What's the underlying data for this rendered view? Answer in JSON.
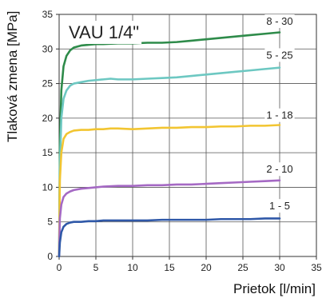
{
  "chart_data": {
    "type": "line",
    "title": "VAU 1/4\"",
    "xlabel": "Prietok [l/min]",
    "ylabel": "Tlaková zmena [MPa]",
    "xlim": [
      0,
      35
    ],
    "ylim": [
      0,
      35
    ],
    "x_ticks": [
      0,
      5,
      10,
      15,
      20,
      25,
      30,
      35
    ],
    "y_ticks": [
      0,
      5,
      10,
      15,
      20,
      25,
      30,
      35
    ],
    "grid": true,
    "series": [
      {
        "name": "8 - 30",
        "color": "#2e8b4a",
        "x": [
          0.1,
          0.3,
          0.6,
          1,
          1.5,
          2,
          3,
          4,
          5,
          6,
          8,
          10,
          12,
          14,
          16,
          18,
          20,
          22,
          24,
          26,
          28,
          30
        ],
        "y": [
          16,
          24,
          27.5,
          29,
          29.8,
          30.2,
          30.5,
          30.6,
          30.7,
          30.7,
          30.8,
          30.8,
          30.9,
          30.9,
          31.0,
          31.2,
          31.4,
          31.6,
          31.8,
          32.0,
          32.2,
          32.4
        ]
      },
      {
        "name": "5 - 25",
        "color": "#6dc8c2",
        "x": [
          0.1,
          0.3,
          0.6,
          1,
          1.5,
          2,
          3,
          4,
          5,
          6,
          7,
          8,
          10,
          12,
          14,
          16,
          18,
          20,
          22,
          24,
          26,
          28,
          30
        ],
        "y": [
          13,
          20,
          22.8,
          24,
          24.7,
          25.0,
          25.2,
          25.4,
          25.5,
          25.6,
          25.7,
          25.6,
          25.6,
          25.7,
          25.8,
          25.9,
          26.1,
          26.3,
          26.5,
          26.7,
          26.9,
          27.1,
          27.3
        ]
      },
      {
        "name": "1 - 18",
        "color": "#f2c531",
        "x": [
          0.1,
          0.3,
          0.6,
          1,
          1.5,
          2,
          3,
          4,
          5,
          6,
          7,
          8,
          10,
          12,
          14,
          16,
          18,
          20,
          22,
          24,
          26,
          28,
          30
        ],
        "y": [
          11,
          15,
          17,
          17.7,
          18.0,
          18.2,
          18.3,
          18.3,
          18.4,
          18.4,
          18.5,
          18.5,
          18.4,
          18.5,
          18.6,
          18.6,
          18.7,
          18.7,
          18.8,
          18.8,
          18.9,
          18.9,
          19.0
        ]
      },
      {
        "name": "2 - 10",
        "color": "#a569c4",
        "x": [
          0.1,
          0.3,
          0.6,
          1,
          1.5,
          2,
          3,
          4,
          5,
          6,
          8,
          10,
          12,
          14,
          16,
          18,
          20,
          22,
          24,
          26,
          28,
          30
        ],
        "y": [
          5.5,
          7.5,
          8.6,
          9.1,
          9.4,
          9.6,
          9.8,
          9.9,
          10.0,
          10.1,
          10.2,
          10.2,
          10.3,
          10.3,
          10.4,
          10.4,
          10.5,
          10.6,
          10.7,
          10.8,
          10.9,
          11.0
        ]
      },
      {
        "name": "1 - 5",
        "color": "#2f58a8",
        "x": [
          0.1,
          0.3,
          0.6,
          1,
          1.5,
          2,
          3,
          4,
          5,
          6,
          8,
          10,
          12,
          14,
          16,
          18,
          20,
          22,
          24,
          26,
          28,
          30
        ],
        "y": [
          2.0,
          3.5,
          4.3,
          4.7,
          4.9,
          5.0,
          5.0,
          5.1,
          5.1,
          5.2,
          5.2,
          5.2,
          5.2,
          5.3,
          5.3,
          5.3,
          5.3,
          5.4,
          5.4,
          5.4,
          5.5,
          5.5
        ]
      }
    ],
    "series_label_positions": [
      {
        "name": "8 - 30",
        "x": 30,
        "y": 33.5
      },
      {
        "name": "5 - 25",
        "x": 30,
        "y": 28.6
      },
      {
        "name": "1 - 18",
        "x": 30,
        "y": 19.9
      },
      {
        "name": "2 - 10",
        "x": 30,
        "y": 12.1
      },
      {
        "name": "1 - 5",
        "x": 30,
        "y": 6.8
      }
    ]
  }
}
